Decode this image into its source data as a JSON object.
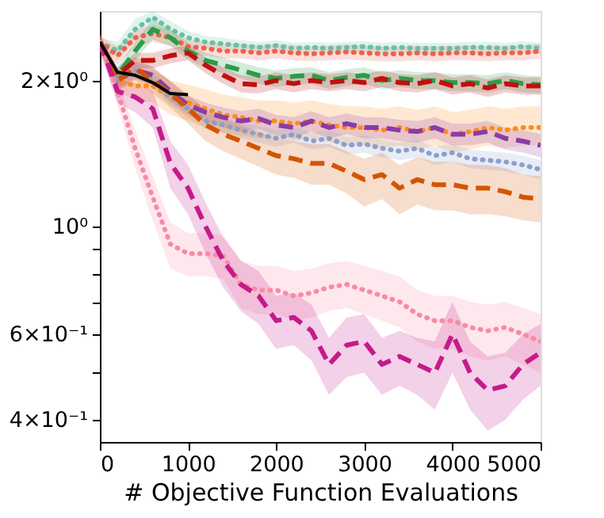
{
  "chart_data": {
    "type": "line",
    "xlabel": "# Objective Function Evaluations",
    "x": [
      0,
      200,
      400,
      600,
      800,
      1000,
      1200,
      1400,
      1600,
      1800,
      2000,
      2200,
      2400,
      2600,
      2800,
      3000,
      3200,
      3400,
      3600,
      3800,
      4000,
      4200,
      4400,
      4600,
      4800,
      5000
    ],
    "xlim": [
      0,
      5000
    ],
    "xticks": [
      0,
      1000,
      2000,
      3000,
      4000,
      5000
    ],
    "ylim": [
      0.36,
      2.78
    ],
    "log": true,
    "yticks": [
      {
        "value": 0.4,
        "label": "4×10⁻¹"
      },
      {
        "value": 0.5,
        "label": null
      },
      {
        "value": 0.6,
        "label": "6×10⁻¹"
      },
      {
        "value": 0.7,
        "label": null
      },
      {
        "value": 0.8,
        "label": null
      },
      {
        "value": 0.9,
        "label": null
      },
      {
        "value": 1,
        "label": "10⁰"
      },
      {
        "value": 2,
        "label": "2×10⁰"
      }
    ],
    "grid": false,
    "series": [
      {
        "color": "#66c2a5",
        "line_style": "dotted",
        "values": [
          2.4,
          2.3,
          2.55,
          2.7,
          2.55,
          2.45,
          2.4,
          2.38,
          2.36,
          2.34,
          2.36,
          2.33,
          2.34,
          2.33,
          2.34,
          2.35,
          2.33,
          2.34,
          2.33,
          2.33,
          2.33,
          2.34,
          2.34,
          2.33,
          2.35,
          2.33
        ],
        "lower": [
          2.35,
          2.2,
          2.42,
          2.58,
          2.45,
          2.37,
          2.33,
          2.31,
          2.3,
          2.28,
          2.3,
          2.27,
          2.28,
          2.27,
          2.28,
          2.29,
          2.27,
          2.28,
          2.27,
          2.27,
          2.27,
          2.28,
          2.28,
          2.27,
          2.29,
          2.27
        ],
        "upper": [
          2.45,
          2.4,
          2.68,
          2.78,
          2.65,
          2.53,
          2.47,
          2.45,
          2.42,
          2.4,
          2.42,
          2.39,
          2.4,
          2.39,
          2.4,
          2.41,
          2.39,
          2.4,
          2.39,
          2.39,
          2.39,
          2.4,
          2.4,
          2.39,
          2.41,
          2.39
        ]
      },
      {
        "color": "#f0604d",
        "line_style": "dotted",
        "values": [
          2.4,
          2.25,
          2.45,
          2.5,
          2.45,
          2.35,
          2.33,
          2.3,
          2.3,
          2.28,
          2.3,
          2.28,
          2.27,
          2.28,
          2.29,
          2.28,
          2.27,
          2.27,
          2.28,
          2.27,
          2.28,
          2.28,
          2.27,
          2.28,
          2.28,
          2.3
        ],
        "lower": [
          2.33,
          2.15,
          2.35,
          2.4,
          2.36,
          2.27,
          2.25,
          2.22,
          2.22,
          2.2,
          2.22,
          2.2,
          2.19,
          2.2,
          2.21,
          2.2,
          2.19,
          2.19,
          2.2,
          2.19,
          2.2,
          2.2,
          2.19,
          2.2,
          2.2,
          2.22
        ],
        "upper": [
          2.47,
          2.35,
          2.55,
          2.6,
          2.54,
          2.43,
          2.41,
          2.38,
          2.38,
          2.36,
          2.38,
          2.36,
          2.35,
          2.36,
          2.37,
          2.36,
          2.35,
          2.35,
          2.36,
          2.35,
          2.36,
          2.36,
          2.35,
          2.36,
          2.36,
          2.38
        ]
      },
      {
        "color": "#2a9d4a",
        "line_style": "dashed",
        "values": [
          2.4,
          2.05,
          2.3,
          2.55,
          2.45,
          2.3,
          2.2,
          2.15,
          2.1,
          2.05,
          2.02,
          2.04,
          2.05,
          2.0,
          2.03,
          2.05,
          2.0,
          2.02,
          2.0,
          2.0,
          1.98,
          1.98,
          1.97,
          2.0,
          1.97,
          1.96
        ],
        "lower": [
          2.33,
          1.97,
          2.2,
          2.43,
          2.35,
          2.21,
          2.12,
          2.07,
          2.02,
          1.97,
          1.94,
          1.96,
          1.97,
          1.92,
          1.95,
          1.97,
          1.92,
          1.94,
          1.92,
          1.92,
          1.9,
          1.9,
          1.89,
          1.92,
          1.89,
          1.88
        ],
        "upper": [
          2.47,
          2.13,
          2.4,
          2.67,
          2.55,
          2.39,
          2.28,
          2.23,
          2.18,
          2.13,
          2.1,
          2.12,
          2.13,
          2.08,
          2.11,
          2.13,
          2.08,
          2.1,
          2.08,
          2.08,
          2.06,
          2.06,
          2.05,
          2.08,
          2.05,
          2.04
        ]
      },
      {
        "color": "#c0100f",
        "line_style": "dashed",
        "values": [
          2.4,
          2.05,
          2.2,
          2.2,
          2.25,
          2.28,
          2.15,
          2.05,
          1.97,
          1.96,
          2.0,
          1.97,
          2.0,
          1.98,
          2.0,
          1.98,
          2.02,
          1.98,
          1.97,
          2.0,
          1.95,
          1.97,
          1.93,
          1.97,
          1.95,
          1.95
        ],
        "lower": [
          2.33,
          1.97,
          2.12,
          2.12,
          2.17,
          2.2,
          2.07,
          1.97,
          1.89,
          1.88,
          1.92,
          1.89,
          1.92,
          1.9,
          1.92,
          1.9,
          1.94,
          1.9,
          1.89,
          1.92,
          1.87,
          1.89,
          1.85,
          1.89,
          1.87,
          1.87
        ],
        "upper": [
          2.47,
          2.13,
          2.28,
          2.28,
          2.33,
          2.36,
          2.23,
          2.13,
          2.05,
          2.04,
          2.08,
          2.05,
          2.08,
          2.06,
          2.08,
          2.06,
          2.1,
          2.06,
          2.05,
          2.08,
          2.03,
          2.05,
          2.01,
          2.05,
          2.03,
          2.03
        ]
      },
      {
        "color": "#ff8c1a",
        "line_style": "dotted",
        "values": [
          2.4,
          2.0,
          1.95,
          1.95,
          1.85,
          1.8,
          1.75,
          1.7,
          1.68,
          1.65,
          1.65,
          1.63,
          1.65,
          1.62,
          1.6,
          1.6,
          1.58,
          1.6,
          1.57,
          1.6,
          1.55,
          1.57,
          1.6,
          1.58,
          1.6,
          1.6
        ],
        "lower": [
          2.3,
          1.9,
          1.82,
          1.8,
          1.7,
          1.65,
          1.6,
          1.56,
          1.54,
          1.52,
          1.52,
          1.5,
          1.52,
          1.49,
          1.47,
          1.47,
          1.45,
          1.47,
          1.44,
          1.47,
          1.42,
          1.44,
          1.47,
          1.45,
          1.47,
          1.47
        ],
        "upper": [
          2.5,
          2.1,
          2.1,
          2.1,
          2.0,
          1.96,
          1.92,
          1.87,
          1.85,
          1.82,
          1.82,
          1.8,
          1.82,
          1.79,
          1.77,
          1.77,
          1.75,
          1.77,
          1.74,
          1.77,
          1.72,
          1.74,
          1.77,
          1.75,
          1.77,
          1.77
        ]
      },
      {
        "color": "#8b3ba8",
        "line_style": "dashed",
        "values": [
          2.4,
          2.0,
          2.1,
          2.05,
          1.9,
          1.78,
          1.72,
          1.68,
          1.65,
          1.67,
          1.62,
          1.6,
          1.65,
          1.6,
          1.63,
          1.6,
          1.6,
          1.58,
          1.57,
          1.6,
          1.55,
          1.55,
          1.57,
          1.52,
          1.5,
          1.47
        ],
        "lower": [
          2.32,
          1.92,
          2.01,
          1.96,
          1.81,
          1.7,
          1.64,
          1.6,
          1.57,
          1.59,
          1.54,
          1.52,
          1.57,
          1.52,
          1.55,
          1.52,
          1.52,
          1.5,
          1.49,
          1.52,
          1.47,
          1.47,
          1.49,
          1.44,
          1.42,
          1.39
        ],
        "upper": [
          2.48,
          2.08,
          2.19,
          2.14,
          1.99,
          1.86,
          1.8,
          1.76,
          1.73,
          1.75,
          1.7,
          1.68,
          1.73,
          1.68,
          1.71,
          1.68,
          1.68,
          1.66,
          1.65,
          1.68,
          1.63,
          1.63,
          1.65,
          1.6,
          1.58,
          1.55
        ]
      },
      {
        "color": "#8c9fcb",
        "line_style": "dotted",
        "values": [
          2.4,
          2.0,
          2.1,
          2.0,
          1.85,
          1.75,
          1.65,
          1.62,
          1.58,
          1.55,
          1.52,
          1.55,
          1.5,
          1.52,
          1.47,
          1.48,
          1.45,
          1.43,
          1.45,
          1.4,
          1.42,
          1.38,
          1.37,
          1.36,
          1.34,
          1.31
        ],
        "lower": [
          2.34,
          1.94,
          2.03,
          1.93,
          1.78,
          1.68,
          1.59,
          1.56,
          1.52,
          1.49,
          1.46,
          1.49,
          1.44,
          1.46,
          1.41,
          1.42,
          1.39,
          1.37,
          1.39,
          1.34,
          1.36,
          1.32,
          1.31,
          1.3,
          1.28,
          1.25
        ],
        "upper": [
          2.46,
          2.06,
          2.17,
          2.07,
          1.92,
          1.82,
          1.71,
          1.68,
          1.64,
          1.61,
          1.58,
          1.61,
          1.56,
          1.58,
          1.53,
          1.54,
          1.51,
          1.49,
          1.51,
          1.46,
          1.48,
          1.44,
          1.43,
          1.42,
          1.4,
          1.37
        ]
      },
      {
        "color": "#d45500",
        "line_style": "dashed",
        "values": [
          2.4,
          2.0,
          2.12,
          2.0,
          1.88,
          1.75,
          1.62,
          1.55,
          1.5,
          1.45,
          1.4,
          1.38,
          1.35,
          1.35,
          1.3,
          1.25,
          1.28,
          1.2,
          1.25,
          1.22,
          1.22,
          1.2,
          1.2,
          1.18,
          1.15,
          1.14
        ],
        "lower": [
          2.3,
          1.9,
          2.0,
          1.88,
          1.76,
          1.63,
          1.5,
          1.43,
          1.38,
          1.33,
          1.28,
          1.26,
          1.22,
          1.22,
          1.17,
          1.1,
          1.14,
          1.06,
          1.11,
          1.08,
          1.08,
          1.06,
          1.06,
          1.05,
          1.03,
          1.02
        ],
        "upper": [
          2.5,
          2.1,
          2.24,
          2.12,
          2.0,
          1.87,
          1.74,
          1.67,
          1.62,
          1.57,
          1.52,
          1.5,
          1.48,
          1.48,
          1.43,
          1.38,
          1.42,
          1.34,
          1.39,
          1.36,
          1.36,
          1.34,
          1.34,
          1.32,
          1.28,
          1.27
        ]
      },
      {
        "color": "#f98aa6",
        "line_style": "dotted",
        "values": [
          2.4,
          1.9,
          1.45,
          1.15,
          0.92,
          0.88,
          0.88,
          0.87,
          0.76,
          0.74,
          0.74,
          0.72,
          0.73,
          0.75,
          0.76,
          0.74,
          0.72,
          0.7,
          0.66,
          0.64,
          0.64,
          0.62,
          0.61,
          0.62,
          0.6,
          0.58
        ],
        "lower": [
          2.3,
          1.78,
          1.32,
          1.03,
          0.82,
          0.79,
          0.79,
          0.78,
          0.68,
          0.66,
          0.66,
          0.64,
          0.65,
          0.67,
          0.68,
          0.66,
          0.64,
          0.62,
          0.58,
          0.56,
          0.56,
          0.54,
          0.53,
          0.54,
          0.52,
          0.5
        ],
        "upper": [
          2.5,
          2.02,
          1.58,
          1.27,
          1.02,
          0.97,
          0.97,
          0.96,
          0.85,
          0.83,
          0.83,
          0.81,
          0.82,
          0.84,
          0.85,
          0.83,
          0.81,
          0.79,
          0.74,
          0.72,
          0.72,
          0.7,
          0.69,
          0.7,
          0.68,
          0.66
        ]
      },
      {
        "color": "#c51b8a",
        "line_style": "dashed",
        "values": [
          2.4,
          1.9,
          1.85,
          1.75,
          1.35,
          1.2,
          1.0,
          0.85,
          0.76,
          0.72,
          0.64,
          0.65,
          0.61,
          0.52,
          0.57,
          0.58,
          0.52,
          0.54,
          0.52,
          0.5,
          0.6,
          0.5,
          0.46,
          0.47,
          0.52,
          0.55
        ],
        "lower": [
          2.3,
          1.8,
          1.72,
          1.6,
          1.2,
          1.06,
          0.88,
          0.75,
          0.67,
          0.63,
          0.56,
          0.57,
          0.53,
          0.45,
          0.49,
          0.5,
          0.45,
          0.47,
          0.45,
          0.42,
          0.5,
          0.42,
          0.38,
          0.4,
          0.44,
          0.47
        ],
        "upper": [
          2.5,
          2.0,
          1.98,
          1.9,
          1.5,
          1.34,
          1.12,
          0.95,
          0.85,
          0.81,
          0.72,
          0.73,
          0.69,
          0.59,
          0.65,
          0.66,
          0.59,
          0.61,
          0.59,
          0.58,
          0.7,
          0.58,
          0.54,
          0.55,
          0.6,
          0.63
        ]
      },
      {
        "color": "#000000",
        "line_style": "solid",
        "x": [
          0,
          200,
          400,
          600,
          800,
          1000
        ],
        "values": [
          2.4,
          2.08,
          2.05,
          1.98,
          1.88,
          1.87
        ]
      }
    ]
  }
}
